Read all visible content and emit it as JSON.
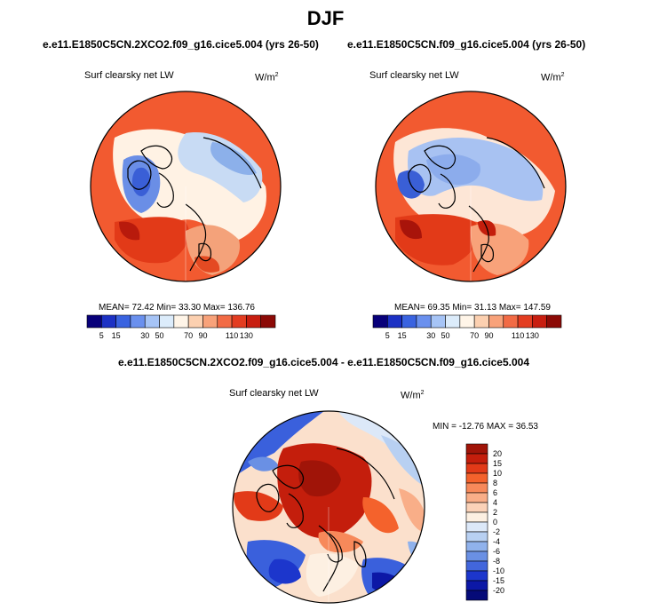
{
  "title": "DJF",
  "panels": [
    {
      "case": "e.e11.E1850C5CN.2XCO2.f09_g16.cice5.004 (yrs 26-50)",
      "variable": "Surf clearsky net LW",
      "units": "W/m",
      "units_exp": "2",
      "stats": "MEAN=  72.42  Min=  33.30  Max= 136.76",
      "mean": 72.42,
      "min": 33.3,
      "max": 136.76
    },
    {
      "case": "e.e11.E1850C5CN.f09_g16.cice5.004 (yrs 26-50)",
      "variable": "Surf clearsky net LW",
      "units": "W/m",
      "units_exp": "2",
      "stats": "MEAN=  69.35  Min=  31.13  Max= 147.59",
      "mean": 69.35,
      "min": 31.13,
      "max": 147.59
    }
  ],
  "diff": {
    "title": "e.e11.E1850C5CN.2XCO2.f09_g16.cice5.004 - e.e11.E1850C5CN.f09_g16.cice5.004",
    "variable": "Surf clearsky net LW",
    "units": "W/m",
    "units_exp": "2",
    "stats": "MIN = -12.76 MAX =  36.53",
    "min": -12.76,
    "max": 36.53
  },
  "colorbar_main": {
    "labels": [
      "5",
      "15",
      "30",
      "50",
      "70",
      "90",
      "110",
      "130"
    ],
    "colors": [
      "#08007a",
      "#1c31c4",
      "#3a63e0",
      "#6a90ee",
      "#a6c4f6",
      "#dcecfb",
      "#fff5e8",
      "#fcd0b0",
      "#f8a27a",
      "#f26b45",
      "#e33d21",
      "#c81e10",
      "#8c0a06"
    ]
  },
  "colorbar_diff": {
    "labels": [
      "20",
      "15",
      "10",
      "8",
      "6",
      "4",
      "2",
      "0",
      "-2",
      "-4",
      "-6",
      "-8",
      "-10",
      "-15",
      "-20"
    ],
    "colors": [
      "#a01408",
      "#c41e0c",
      "#e23a18",
      "#f4622c",
      "#f7895a",
      "#f9ae88",
      "#fbd2b8",
      "#fdf0e2",
      "#dce8f8",
      "#b8d0f2",
      "#90b2ec",
      "#6a90e4",
      "#4266dc",
      "#1c36cc",
      "#0c18a6",
      "#050a78"
    ]
  },
  "chart_data": {
    "type": "heatmap",
    "title": "DJF",
    "panels": [
      {
        "case": "e.e11.E1850C5CN.2XCO2.f09_g16.cice5.004 (yrs 26-50)",
        "variable": "Surf clearsky net LW",
        "units": "W/m2",
        "mean": 72.42,
        "min": 33.3,
        "max": 136.76
      },
      {
        "case": "e.e11.E1850C5CN.f09_g16.cice5.004 (yrs 26-50)",
        "variable": "Surf clearsky net LW",
        "units": "W/m2",
        "mean": 69.35,
        "min": 31.13,
        "max": 147.59
      },
      {
        "case": "e.e11.E1850C5CN.2XCO2.f09_g16.cice5.004 - e.e11.E1850C5CN.f09_g16.cice5.004",
        "variable": "Surf clearsky net LW",
        "units": "W/m2",
        "min": -12.76,
        "max": 36.53
      }
    ],
    "colorbar_levels_main": [
      5,
      15,
      30,
      50,
      70,
      90,
      110,
      130
    ],
    "colorbar_levels_diff": [
      20,
      15,
      10,
      8,
      6,
      4,
      2,
      0,
      -2,
      -4,
      -6,
      -8,
      -10,
      -15,
      -20
    ]
  }
}
